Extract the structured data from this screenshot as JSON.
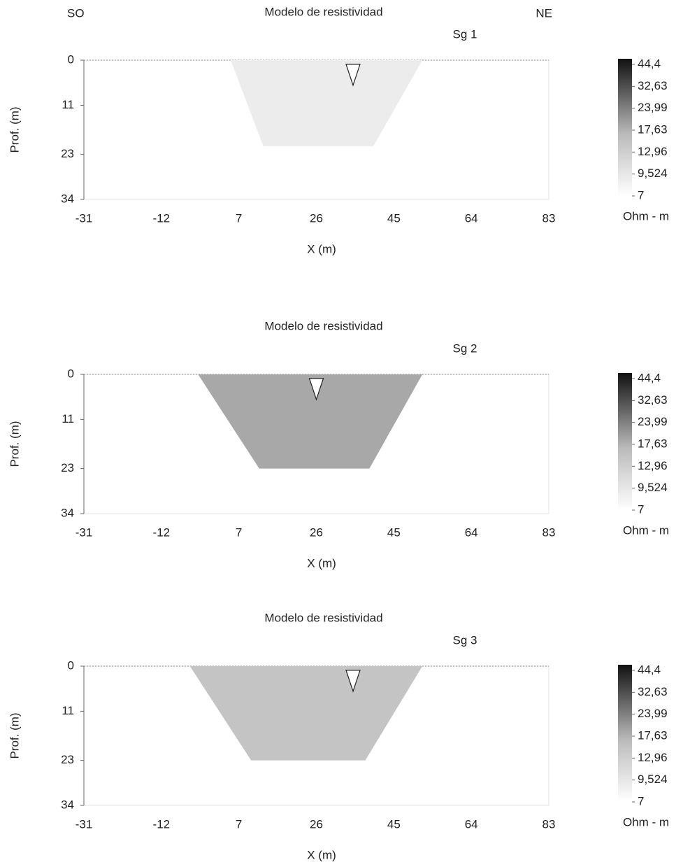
{
  "chart_data": [
    {
      "type": "section",
      "title": "Modelo de resistividad",
      "subtitle": "Sg 1",
      "annotations": [
        "SO",
        "NE"
      ],
      "xlabel": "X (m)",
      "ylabel": "Prof. (m)",
      "xlim": [
        -31,
        83
      ],
      "xticks": [
        -31,
        -12,
        7,
        26,
        45,
        64,
        83
      ],
      "ylim": [
        0,
        34
      ],
      "yticks": [
        0,
        11,
        23,
        34
      ],
      "invert_y": true,
      "region": {
        "x": [
          5,
          52,
          40,
          13
        ],
        "y": [
          0,
          0,
          21,
          21
        ],
        "color": "#ececec"
      },
      "marker": {
        "x": 35,
        "y": 1
      },
      "colorbar": {
        "label": "Ohm - m",
        "log": true,
        "ticks": [
          {
            "value": 44.4,
            "label": "44,4"
          },
          {
            "value": 32.63,
            "label": "32,63"
          },
          {
            "value": 23.99,
            "label": "23,99"
          },
          {
            "value": 17.63,
            "label": "17,63"
          },
          {
            "value": 12.96,
            "label": "12,96"
          },
          {
            "value": 9.524,
            "label": "9,524"
          },
          7
        ]
      }
    },
    {
      "type": "section",
      "title": "Modelo de resistividad",
      "subtitle": "Sg 2",
      "xlabel": "X (m)",
      "ylabel": "Prof. (m)",
      "xlim": [
        -31,
        83
      ],
      "xticks": [
        -31,
        -12,
        7,
        26,
        45,
        64,
        83
      ],
      "ylim": [
        0,
        34
      ],
      "yticks": [
        0,
        11,
        23,
        34
      ],
      "invert_y": true,
      "region": {
        "x": [
          -3,
          52,
          39,
          12
        ],
        "y": [
          0,
          0,
          23,
          23
        ],
        "color": "#a8a8a8"
      },
      "marker": {
        "x": 26,
        "y": 1
      },
      "colorbar": {
        "label": "Ohm - m",
        "log": true,
        "ticks": [
          {
            "value": 44.4,
            "label": "44,4"
          },
          {
            "value": 32.63,
            "label": "32,63"
          },
          {
            "value": 23.99,
            "label": "23,99"
          },
          {
            "value": 17.63,
            "label": "17,63"
          },
          {
            "value": 12.96,
            "label": "12,96"
          },
          {
            "value": 9.524,
            "label": "9,524"
          },
          7
        ]
      }
    },
    {
      "type": "section",
      "title": "Modelo de resistividad",
      "subtitle": "Sg 3",
      "xlabel": "X (m)",
      "ylabel": "Prof. (m)",
      "xlim": [
        -31,
        83
      ],
      "xticks": [
        -31,
        -12,
        7,
        26,
        45,
        64,
        83
      ],
      "ylim": [
        0,
        34
      ],
      "yticks": [
        0,
        11,
        23,
        34
      ],
      "invert_y": true,
      "region": {
        "x": [
          -5,
          52,
          38,
          10
        ],
        "y": [
          0,
          0,
          23,
          23
        ],
        "color": "#c4c4c4"
      },
      "marker": {
        "x": 35,
        "y": 1
      },
      "colorbar": {
        "label": "Ohm - m",
        "log": true,
        "ticks": [
          {
            "value": 44.4,
            "label": "44,4"
          },
          {
            "value": 32.63,
            "label": "32,63"
          },
          {
            "value": 23.99,
            "label": "23,99"
          },
          {
            "value": 17.63,
            "label": "17,63"
          },
          {
            "value": 12.96,
            "label": "12,96"
          },
          {
            "value": 9.524,
            "label": "9,524"
          },
          7
        ]
      }
    }
  ]
}
